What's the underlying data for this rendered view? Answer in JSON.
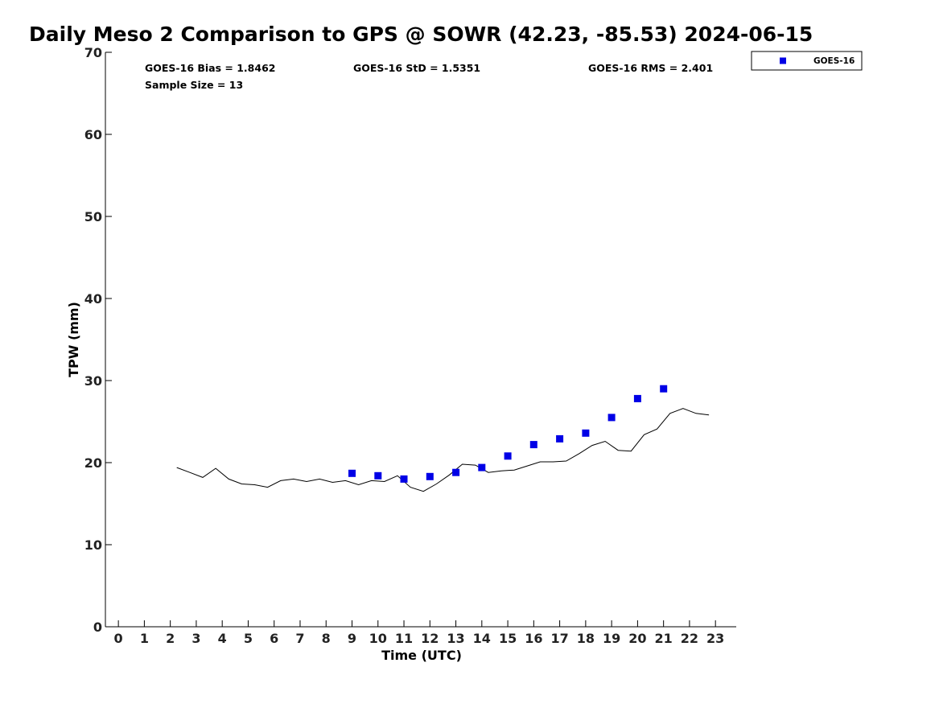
{
  "chart_data": {
    "type": "scatter",
    "title": "Daily Meso 2 Comparison to GPS @ SOWR (42.23, -85.53) 2024-06-15",
    "xlabel": "Time (UTC)",
    "ylabel": "TPW (mm)",
    "xlim": [
      -0.5,
      23.8
    ],
    "ylim": [
      0,
      70
    ],
    "xticks": [
      0,
      1,
      2,
      3,
      4,
      5,
      6,
      7,
      8,
      9,
      10,
      11,
      12,
      13,
      14,
      15,
      16,
      17,
      18,
      19,
      20,
      21,
      22,
      23
    ],
    "yticks": [
      0,
      10,
      20,
      30,
      40,
      50,
      60,
      70
    ],
    "grid": false,
    "legend_position": "top-right",
    "stats": {
      "bias": "GOES-16 Bias = 1.8462",
      "std": "GOES-16 StD = 1.5351",
      "rms": "GOES-16 RMS = 2.401",
      "sample": "Sample Size = 13"
    },
    "series": [
      {
        "name": "",
        "type": "line",
        "color": "#000000",
        "x": [
          2.25,
          2.75,
          3.25,
          3.75,
          4.25,
          4.75,
          5.25,
          5.75,
          6.25,
          6.75,
          7.25,
          7.75,
          8.25,
          8.75,
          9.25,
          9.75,
          10.25,
          10.75,
          11.25,
          11.75,
          12.25,
          12.75,
          13.25,
          13.75,
          14.25,
          14.75,
          15.25,
          15.75,
          16.25,
          16.75,
          17.25,
          17.75,
          18.25,
          18.75,
          19.25,
          19.75,
          20.25,
          20.75,
          21.25,
          21.75,
          22.25,
          22.75
        ],
        "y": [
          19.4,
          18.8,
          18.2,
          19.3,
          18.0,
          17.4,
          17.3,
          17.0,
          17.8,
          18.0,
          17.7,
          18.0,
          17.6,
          17.8,
          17.3,
          17.8,
          17.7,
          18.4,
          17.0,
          16.5,
          17.4,
          18.5,
          19.8,
          19.7,
          18.8,
          19.0,
          19.1,
          19.6,
          20.1,
          20.1,
          20.2,
          21.1,
          22.1,
          22.6,
          21.5,
          21.4,
          23.4,
          24.1,
          26.0,
          26.6,
          26.0,
          25.8
        ]
      },
      {
        "name": "GOES-16",
        "type": "scatter",
        "marker": "square",
        "color": "#0000e6",
        "x": [
          9,
          10,
          11,
          12,
          13,
          14,
          15,
          16,
          17,
          18,
          19,
          20,
          21
        ],
        "y": [
          18.7,
          18.4,
          18.0,
          18.3,
          18.8,
          19.4,
          20.8,
          22.2,
          22.9,
          23.6,
          25.5,
          27.8,
          29.0
        ]
      }
    ]
  }
}
